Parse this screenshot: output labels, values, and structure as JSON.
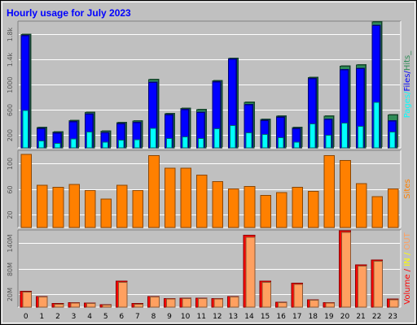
{
  "title": "Hourly usage for July 2023",
  "colors": {
    "outer_bg": "#c0c0c0",
    "plot_bg": "#c0c0c0",
    "title": "#0000ff",
    "hits": "#2e8b57",
    "files": "#0000ff",
    "pages": "#00ffff",
    "sites": "#ff8000",
    "in": "#ffff00",
    "out": "#ffa060",
    "volume": "#ff0000",
    "grid": "#ffffff"
  },
  "chart_data": [
    {
      "type": "bar",
      "name": "usage",
      "categories": [
        "0",
        "1",
        "2",
        "3",
        "4",
        "5",
        "6",
        "7",
        "8",
        "9",
        "10",
        "11",
        "12",
        "13",
        "14",
        "15",
        "16",
        "17",
        "18",
        "19",
        "20",
        "21",
        "22",
        "23"
      ],
      "series": [
        {
          "name": "Hits",
          "values": [
            1790,
            320,
            250,
            430,
            560,
            260,
            400,
            420,
            1080,
            540,
            620,
            600,
            1060,
            1410,
            720,
            450,
            500,
            320,
            1110,
            500,
            1290,
            1310,
            1990,
            520
          ]
        },
        {
          "name": "Files",
          "values": [
            1770,
            300,
            230,
            410,
            530,
            240,
            380,
            400,
            1030,
            520,
            600,
            560,
            1040,
            1400,
            680,
            430,
            480,
            300,
            1090,
            450,
            1230,
            1250,
            1930,
            420
          ]
        },
        {
          "name": "Pages",
          "values": [
            590,
            110,
            70,
            140,
            250,
            90,
            120,
            130,
            310,
            150,
            170,
            150,
            300,
            350,
            240,
            210,
            160,
            90,
            380,
            200,
            390,
            340,
            720,
            250
          ]
        }
      ],
      "ylabel_parts": [
        "Pages",
        "Files",
        "Hits"
      ],
      "yticks": [
        "200",
        "600",
        "1000",
        "1.4k",
        "1.8k"
      ],
      "ylim": [
        0,
        2000
      ]
    },
    {
      "type": "bar",
      "name": "sites",
      "categories": [
        "0",
        "1",
        "2",
        "3",
        "4",
        "5",
        "6",
        "7",
        "8",
        "9",
        "10",
        "11",
        "12",
        "13",
        "14",
        "15",
        "16",
        "17",
        "18",
        "19",
        "20",
        "21",
        "22",
        "23"
      ],
      "series": [
        {
          "name": "Sites",
          "values": [
            142,
            82,
            78,
            84,
            72,
            55,
            82,
            72,
            140,
            115,
            115,
            102,
            89,
            75,
            80,
            62,
            68,
            78,
            70,
            140,
            130,
            85,
            60,
            75
          ]
        }
      ],
      "ylabel": "Sites",
      "yticks": [
        "20",
        "60",
        "100"
      ],
      "ylim": [
        0,
        150
      ]
    },
    {
      "type": "bar",
      "name": "volume",
      "categories": [
        "0",
        "1",
        "2",
        "3",
        "4",
        "5",
        "6",
        "7",
        "8",
        "9",
        "10",
        "11",
        "12",
        "13",
        "14",
        "15",
        "16",
        "17",
        "18",
        "19",
        "20",
        "21",
        "22",
        "23"
      ],
      "series": [
        {
          "name": "Volume",
          "values": [
            32,
            21,
            7,
            9,
            8,
            5,
            52,
            7,
            21,
            17,
            18,
            18,
            17,
            21,
            144,
            52,
            10,
            48,
            15,
            9,
            153,
            85,
            95,
            16
          ]
        },
        {
          "name": "OUT",
          "values": [
            30,
            20,
            6,
            8,
            7,
            4,
            50,
            6,
            20,
            16,
            17,
            17,
            16,
            20,
            140,
            50,
            9,
            46,
            14,
            8,
            150,
            82,
            92,
            15
          ]
        }
      ],
      "ylabel_parts": [
        "Volume",
        "IN",
        "OUT"
      ],
      "yticks": [
        "20M",
        "80M",
        "140M"
      ],
      "ylim": [
        0,
        155
      ]
    }
  ]
}
